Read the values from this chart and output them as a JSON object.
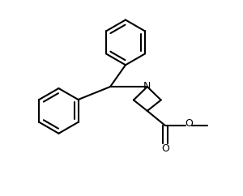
{
  "background_color": "#ffffff",
  "line_color": "#000000",
  "line_width": 1.5,
  "figsize": [
    3.0,
    2.42
  ],
  "dpi": 100,
  "xlim": [
    0,
    3.0
  ],
  "ylim": [
    0,
    2.42
  ]
}
